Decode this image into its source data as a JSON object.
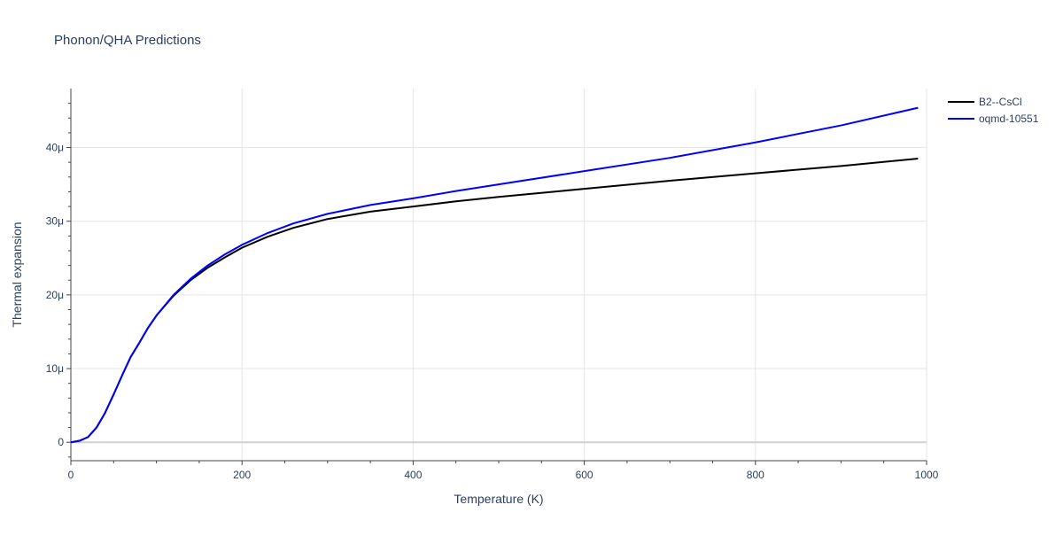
{
  "chart_data": {
    "type": "line",
    "title": "Phonon/QHA Predictions",
    "xlabel": "Temperature (K)",
    "ylabel": "Thermal expansion",
    "xlim": [
      0,
      1000
    ],
    "ylim": [
      -2.5e-06,
      4.8e-05
    ],
    "x_ticks": [
      0,
      200,
      400,
      600,
      800,
      1000
    ],
    "x_tick_labels": [
      "0",
      "200",
      "400",
      "600",
      "800",
      "1000"
    ],
    "y_ticks": [
      0,
      1e-05,
      2e-05,
      3e-05,
      4e-05
    ],
    "y_tick_labels": [
      "0",
      "10μ",
      "20μ",
      "30μ",
      "40μ"
    ],
    "grid": true,
    "legend_position": "top-right",
    "series": [
      {
        "name": "B2--CsCl",
        "color": "#000000",
        "x": [
          0,
          10,
          20,
          30,
          40,
          50,
          60,
          70,
          80,
          90,
          100,
          120,
          140,
          160,
          180,
          200,
          230,
          260,
          300,
          350,
          400,
          450,
          500,
          600,
          700,
          800,
          900,
          990
        ],
        "y": [
          0,
          2e-07,
          7e-07,
          2e-06,
          4e-06,
          6.5e-06,
          9.1e-06,
          1.16e-05,
          1.35e-05,
          1.55e-05,
          1.72e-05,
          1.99e-05,
          2.2e-05,
          2.37e-05,
          2.51e-05,
          2.64e-05,
          2.79e-05,
          2.91e-05,
          3.03e-05,
          3.13e-05,
          3.2e-05,
          3.27e-05,
          3.33e-05,
          3.44e-05,
          3.55e-05,
          3.65e-05,
          3.75e-05,
          3.85e-05
        ]
      },
      {
        "name": "oqmd-10551",
        "color": "#0000ff",
        "x": [
          0,
          10,
          20,
          30,
          40,
          50,
          60,
          70,
          80,
          90,
          100,
          120,
          140,
          160,
          180,
          200,
          230,
          260,
          300,
          350,
          400,
          450,
          500,
          600,
          700,
          800,
          900,
          990
        ],
        "y": [
          0,
          2e-07,
          7e-07,
          2e-06,
          4e-06,
          6.5e-06,
          9.1e-06,
          1.16e-05,
          1.35e-05,
          1.55e-05,
          1.72e-05,
          2e-05,
          2.22e-05,
          2.4e-05,
          2.55e-05,
          2.68e-05,
          2.84e-05,
          2.97e-05,
          3.1e-05,
          3.22e-05,
          3.31e-05,
          3.41e-05,
          3.5e-05,
          3.68e-05,
          3.86e-05,
          4.07e-05,
          4.3e-05,
          4.54e-05
        ]
      }
    ]
  }
}
